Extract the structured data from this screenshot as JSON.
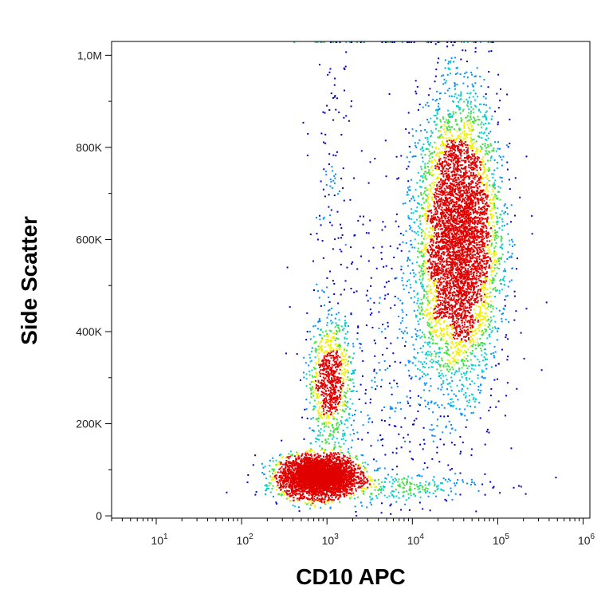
{
  "chart_data": {
    "type": "scatter",
    "title": "",
    "xlabel": "CD10 APC",
    "ylabel": "Side Scatter",
    "x_scale": "log",
    "xlim": [
      3,
      1200000
    ],
    "ylim": [
      -5000,
      1030000
    ],
    "x_ticks": [
      {
        "value": 10,
        "base": "10",
        "exp": "1"
      },
      {
        "value": 100,
        "base": "10",
        "exp": "2"
      },
      {
        "value": 1000,
        "base": "10",
        "exp": "3"
      },
      {
        "value": 10000,
        "base": "10",
        "exp": "4"
      },
      {
        "value": 100000,
        "base": "10",
        "exp": "5"
      },
      {
        "value": 1000000,
        "base": "10",
        "exp": "6"
      }
    ],
    "y_ticks": [
      {
        "value": 0,
        "label": "0"
      },
      {
        "value": 200000,
        "label": "200K"
      },
      {
        "value": 400000,
        "label": "400K"
      },
      {
        "value": 600000,
        "label": "600K"
      },
      {
        "value": 800000,
        "label": "800K"
      },
      {
        "value": 1000000,
        "label": "1,0M"
      }
    ],
    "grid": false,
    "legend": "none",
    "coloring": "density",
    "populations": [
      {
        "center_x": 800,
        "center_y": 85000,
        "spread_log_x": 0.22,
        "spread_y": 22000,
        "count": 3800
      },
      {
        "center_x": 1100,
        "center_y": 290000,
        "spread_log_x": 0.13,
        "spread_y": 70000,
        "count": 900
      },
      {
        "center_x": 1200,
        "center_y": 700000,
        "spread_log_x": 0.12,
        "spread_y": 200000,
        "count": 130
      },
      {
        "center_x": 35000,
        "center_y": 600000,
        "spread_log_x": 0.24,
        "spread_y": 150000,
        "count": 5200
      },
      {
        "center_x": 8000,
        "center_y": 300000,
        "spread_log_x": 0.45,
        "spread_y": 200000,
        "count": 500
      },
      {
        "center_x": 5000,
        "center_y": 65000,
        "spread_log_x": 0.6,
        "spread_y": 15000,
        "count": 250
      }
    ],
    "colors": {
      "low": "#0000c8",
      "mid_low": "#0090ff",
      "mid": "#00d0d0",
      "mid_high": "#40e040",
      "high": "#f0f000",
      "peak": "#e00000"
    }
  }
}
